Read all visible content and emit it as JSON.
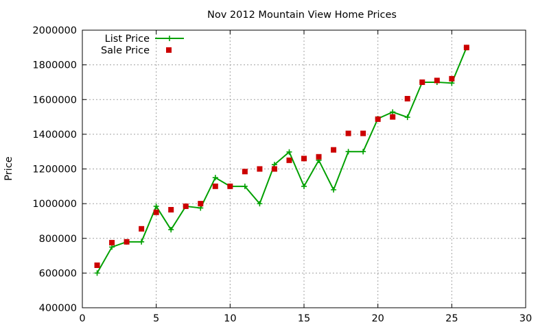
{
  "chart_data": {
    "type": "line",
    "title": "Nov 2012 Mountain View Home Prices",
    "xlabel": "",
    "ylabel": "Price",
    "xlim": [
      0,
      30
    ],
    "ylim": [
      400000,
      2000000
    ],
    "x_ticks": [
      0,
      5,
      10,
      15,
      20,
      25,
      30
    ],
    "y_ticks": [
      400000,
      600000,
      800000,
      1000000,
      1200000,
      1400000,
      1600000,
      1800000,
      2000000
    ],
    "grid": true,
    "legend_position": "top-left",
    "series": [
      {
        "name": "List Price",
        "kind": "line-plus-markers",
        "color": "#00a000",
        "points": [
          [
            1,
            600000
          ],
          [
            2,
            750000
          ],
          [
            3,
            780000
          ],
          [
            4,
            780000
          ],
          [
            5,
            985000
          ],
          [
            6,
            850000
          ],
          [
            7,
            985000
          ],
          [
            8,
            975000
          ],
          [
            9,
            1150000
          ],
          [
            10,
            1100000
          ],
          [
            11,
            1100000
          ],
          [
            12,
            1000000
          ],
          [
            13,
            1225000
          ],
          [
            14,
            1298000
          ],
          [
            15,
            1100000
          ],
          [
            16,
            1250000
          ],
          [
            17,
            1080000
          ],
          [
            18,
            1300000
          ],
          [
            19,
            1300000
          ],
          [
            20,
            1490000
          ],
          [
            21,
            1528000
          ],
          [
            22,
            1498000
          ],
          [
            23,
            1700000
          ],
          [
            24,
            1700000
          ],
          [
            25,
            1695000
          ],
          [
            26,
            1900000
          ]
        ]
      },
      {
        "name": "Sale Price",
        "kind": "square-markers",
        "color": "#cc0000",
        "points": [
          [
            1,
            645000
          ],
          [
            2,
            775000
          ],
          [
            3,
            780000
          ],
          [
            4,
            855000
          ],
          [
            5,
            950000
          ],
          [
            6,
            965000
          ],
          [
            7,
            985000
          ],
          [
            8,
            1000000
          ],
          [
            9,
            1100000
          ],
          [
            10,
            1100000
          ],
          [
            11,
            1185000
          ],
          [
            12,
            1200000
          ],
          [
            13,
            1200000
          ],
          [
            14,
            1250000
          ],
          [
            15,
            1260000
          ],
          [
            16,
            1270000
          ],
          [
            17,
            1310000
          ],
          [
            18,
            1405000
          ],
          [
            19,
            1405000
          ],
          [
            20,
            1487000
          ],
          [
            21,
            1500000
          ],
          [
            22,
            1605000
          ],
          [
            23,
            1700000
          ],
          [
            24,
            1710000
          ],
          [
            25,
            1720000
          ],
          [
            26,
            1900000
          ]
        ]
      }
    ]
  }
}
